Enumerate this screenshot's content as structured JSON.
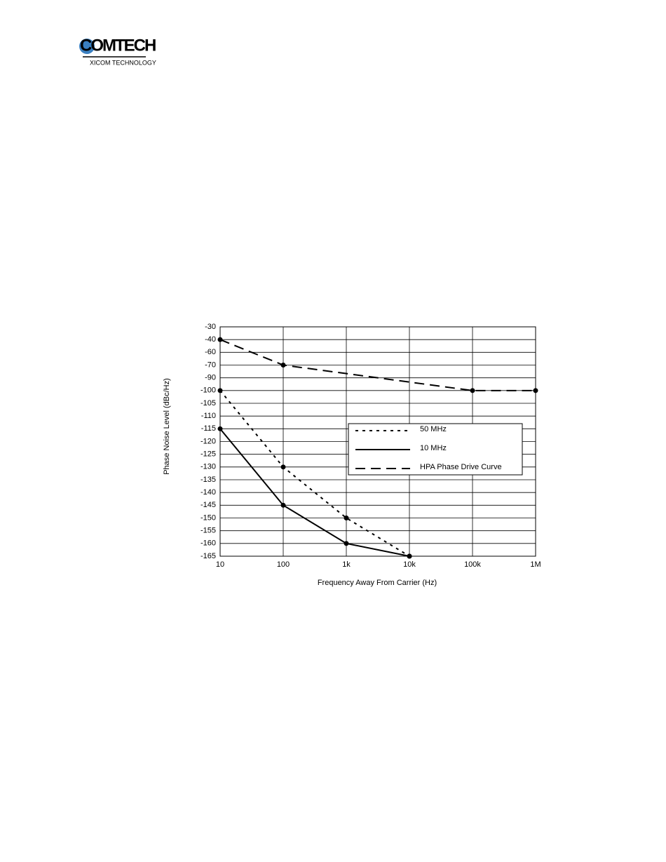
{
  "logo": {
    "name": "COMTECH",
    "sub": "XICOM TECHNOLOGY"
  },
  "chart_data": {
    "type": "line",
    "xlabel": "Frequency Away From Carrier (Hz)",
    "ylabel": "Phase Noise Level (dBc/Hz)",
    "xscale": "log",
    "xlim": [
      10,
      1000000
    ],
    "xticks": [
      10,
      100,
      {
        "value": 1000,
        "label": "1k"
      },
      {
        "value": 10000,
        "label": "10k"
      },
      {
        "value": 100000,
        "label": "100k"
      },
      {
        "value": 1000000,
        "label": "1M"
      }
    ],
    "ylim": [
      -165,
      -30
    ],
    "yticks": [
      -30,
      -40,
      -60,
      -70,
      -90,
      -100,
      -105,
      -110,
      -115,
      -120,
      -125,
      -130,
      -135,
      -140,
      -145,
      -150,
      -155,
      -160,
      -165
    ],
    "grid": true,
    "legend": "right",
    "series": [
      {
        "name": "50 MHz",
        "color": "#000000",
        "dash": "short",
        "x": [
          10,
          100,
          1000,
          10000
        ],
        "values": [
          -100,
          -130,
          -150,
          -165
        ]
      },
      {
        "name": "10 MHz",
        "color": "#000000",
        "dash": "solid",
        "x": [
          10,
          100,
          1000,
          10000
        ],
        "values": [
          -115,
          -145,
          -160,
          -165
        ]
      },
      {
        "name": "HPA Phase Drive Curve",
        "color": "#000000",
        "dash": "long",
        "x": [
          10,
          100,
          100000,
          1000000
        ],
        "values": [
          -40,
          -70,
          -100,
          -100
        ]
      }
    ]
  }
}
